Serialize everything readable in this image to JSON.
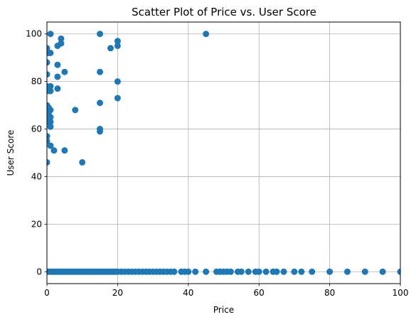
{
  "chart_data": {
    "type": "scatter",
    "title": "Scatter Plot of Price vs. User Score",
    "xlabel": "Price",
    "ylabel": "User Score",
    "xlim": [
      0,
      100
    ],
    "ylim": [
      -5,
      105
    ],
    "xticks": [
      0,
      20,
      40,
      60,
      80,
      100
    ],
    "yticks": [
      0,
      20,
      40,
      60,
      80,
      100
    ],
    "grid": true,
    "point_color": "#1f77b4",
    "points": [
      [
        0,
        94
      ],
      [
        0,
        88
      ],
      [
        0,
        83
      ],
      [
        0,
        78
      ],
      [
        0,
        70
      ],
      [
        0,
        67
      ],
      [
        0,
        63
      ],
      [
        0,
        57
      ],
      [
        0,
        55
      ],
      [
        0,
        46
      ],
      [
        0.5,
        92
      ],
      [
        0.5,
        76
      ],
      [
        0.5,
        64
      ],
      [
        0.5,
        66
      ],
      [
        0.5,
        69
      ],
      [
        1,
        100
      ],
      [
        1,
        92
      ],
      [
        1,
        78
      ],
      [
        1,
        76
      ],
      [
        1,
        68
      ],
      [
        1,
        65
      ],
      [
        1,
        63
      ],
      [
        1,
        61
      ],
      [
        1,
        53
      ],
      [
        2,
        51
      ],
      [
        3,
        95
      ],
      [
        3,
        87
      ],
      [
        3,
        82
      ],
      [
        3,
        77
      ],
      [
        4,
        98
      ],
      [
        4,
        96
      ],
      [
        5,
        84
      ],
      [
        5,
        51
      ],
      [
        8,
        68
      ],
      [
        10,
        46
      ],
      [
        15,
        100
      ],
      [
        15,
        84
      ],
      [
        15,
        71
      ],
      [
        15,
        60
      ],
      [
        15,
        59
      ],
      [
        18,
        94
      ],
      [
        20,
        97
      ],
      [
        20,
        95
      ],
      [
        20,
        80
      ],
      [
        20,
        73
      ],
      [
        45,
        100
      ],
      [
        0,
        0
      ],
      [
        0.5,
        0
      ],
      [
        1,
        0
      ],
      [
        1.5,
        0
      ],
      [
        2,
        0
      ],
      [
        2.5,
        0
      ],
      [
        3,
        0
      ],
      [
        3.5,
        0
      ],
      [
        4,
        0
      ],
      [
        4.5,
        0
      ],
      [
        5,
        0
      ],
      [
        5.5,
        0
      ],
      [
        6,
        0
      ],
      [
        6.5,
        0
      ],
      [
        7,
        0
      ],
      [
        7.5,
        0
      ],
      [
        8,
        0
      ],
      [
        8.5,
        0
      ],
      [
        9,
        0
      ],
      [
        9.5,
        0
      ],
      [
        10,
        0
      ],
      [
        10.5,
        0
      ],
      [
        11,
        0
      ],
      [
        11.5,
        0
      ],
      [
        12,
        0
      ],
      [
        12.5,
        0
      ],
      [
        13,
        0
      ],
      [
        13.5,
        0
      ],
      [
        14,
        0
      ],
      [
        14.5,
        0
      ],
      [
        15,
        0
      ],
      [
        15.5,
        0
      ],
      [
        16,
        0
      ],
      [
        16.5,
        0
      ],
      [
        17,
        0
      ],
      [
        17.5,
        0
      ],
      [
        18,
        0
      ],
      [
        18.5,
        0
      ],
      [
        19,
        0
      ],
      [
        19.5,
        0
      ],
      [
        20,
        0
      ],
      [
        21,
        0
      ],
      [
        22,
        0
      ],
      [
        23,
        0
      ],
      [
        24,
        0
      ],
      [
        25,
        0
      ],
      [
        26,
        0
      ],
      [
        27,
        0
      ],
      [
        28,
        0
      ],
      [
        29,
        0
      ],
      [
        30,
        0
      ],
      [
        31,
        0
      ],
      [
        32,
        0
      ],
      [
        33,
        0
      ],
      [
        34,
        0
      ],
      [
        35,
        0
      ],
      [
        36,
        0
      ],
      [
        38,
        0
      ],
      [
        39,
        0
      ],
      [
        40,
        0
      ],
      [
        42,
        0
      ],
      [
        45,
        0
      ],
      [
        48,
        0
      ],
      [
        49,
        0
      ],
      [
        50,
        0
      ],
      [
        51,
        0
      ],
      [
        52,
        0
      ],
      [
        54,
        0
      ],
      [
        55,
        0
      ],
      [
        57,
        0
      ],
      [
        59,
        0
      ],
      [
        60,
        0
      ],
      [
        62,
        0
      ],
      [
        64,
        0
      ],
      [
        65,
        0
      ],
      [
        67,
        0
      ],
      [
        70,
        0
      ],
      [
        72,
        0
      ],
      [
        75,
        0
      ],
      [
        80,
        0
      ],
      [
        85,
        0
      ],
      [
        90,
        0
      ],
      [
        95,
        0
      ],
      [
        100,
        0
      ]
    ]
  }
}
